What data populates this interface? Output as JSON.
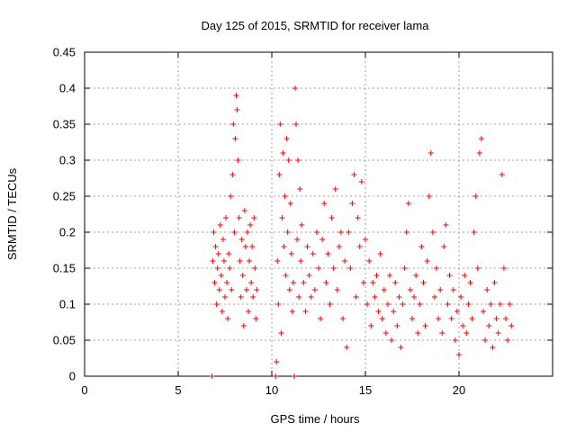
{
  "chart_data": {
    "type": "scatter",
    "title": "Day 125 of 2015, SRMTID for receiver lama",
    "xlabel": "GPS time / hours",
    "ylabel": "SRMTID / TECUs",
    "xlim": [
      0,
      25
    ],
    "ylim": [
      0,
      0.45
    ],
    "xticks": [
      0,
      5,
      10,
      15,
      20
    ],
    "yticks": [
      0,
      0.05,
      0.1,
      0.15,
      0.2,
      0.25,
      0.3,
      0.35,
      0.4,
      0.45
    ],
    "ytick_labels": [
      "0",
      "0.05",
      "0.1",
      "0.15",
      "0.2",
      "0.25",
      "0.3",
      "0.35",
      "0.4",
      "0.45"
    ],
    "grid": true,
    "marker": "+",
    "color": "#ff0000",
    "series": [
      {
        "name": "SRMTID",
        "points": [
          [
            6.8,
            0.0
          ],
          [
            6.85,
            0.16
          ],
          [
            6.9,
            0.2
          ],
          [
            6.95,
            0.13
          ],
          [
            7.0,
            0.18
          ],
          [
            7.05,
            0.1
          ],
          [
            7.1,
            0.15
          ],
          [
            7.15,
            0.17
          ],
          [
            7.2,
            0.12
          ],
          [
            7.25,
            0.21
          ],
          [
            7.3,
            0.14
          ],
          [
            7.35,
            0.09
          ],
          [
            7.4,
            0.19
          ],
          [
            7.45,
            0.16
          ],
          [
            7.5,
            0.11
          ],
          [
            7.55,
            0.22
          ],
          [
            7.6,
            0.13
          ],
          [
            7.65,
            0.08
          ],
          [
            7.7,
            0.17
          ],
          [
            7.75,
            0.15
          ],
          [
            7.8,
            0.25
          ],
          [
            7.85,
            0.12
          ],
          [
            7.9,
            0.28
          ],
          [
            7.95,
            0.35
          ],
          [
            8.0,
            0.2
          ],
          [
            8.05,
            0.33
          ],
          [
            8.1,
            0.39
          ],
          [
            8.15,
            0.37
          ],
          [
            8.2,
            0.3
          ],
          [
            8.25,
            0.22
          ],
          [
            8.3,
            0.16
          ],
          [
            8.35,
            0.11
          ],
          [
            8.4,
            0.19
          ],
          [
            8.45,
            0.14
          ],
          [
            8.5,
            0.07
          ],
          [
            8.55,
            0.23
          ],
          [
            8.6,
            0.18
          ],
          [
            8.65,
            0.12
          ],
          [
            8.7,
            0.2
          ],
          [
            8.75,
            0.09
          ],
          [
            8.8,
            0.16
          ],
          [
            8.85,
            0.21
          ],
          [
            8.9,
            0.13
          ],
          [
            8.95,
            0.18
          ],
          [
            9.0,
            0.11
          ],
          [
            9.05,
            0.22
          ],
          [
            9.1,
            0.15
          ],
          [
            9.15,
            0.08
          ],
          [
            9.2,
            0.12
          ],
          [
            10.2,
            0.0
          ],
          [
            10.25,
            0.02
          ],
          [
            10.3,
            0.16
          ],
          [
            10.35,
            0.1
          ],
          [
            10.4,
            0.28
          ],
          [
            10.45,
            0.35
          ],
          [
            10.5,
            0.06
          ],
          [
            10.55,
            0.22
          ],
          [
            10.6,
            0.31
          ],
          [
            10.65,
            0.18
          ],
          [
            10.7,
            0.25
          ],
          [
            10.75,
            0.14
          ],
          [
            10.8,
            0.33
          ],
          [
            10.85,
            0.2
          ],
          [
            10.9,
            0.3
          ],
          [
            10.95,
            0.12
          ],
          [
            11.0,
            0.24
          ],
          [
            11.05,
            0.17
          ],
          [
            11.1,
            0.09
          ],
          [
            11.15,
            0.13
          ],
          [
            11.2,
            0.0
          ],
          [
            11.25,
            0.4
          ],
          [
            11.3,
            0.35
          ],
          [
            11.35,
            0.19
          ],
          [
            11.4,
            0.3
          ],
          [
            11.45,
            0.11
          ],
          [
            11.5,
            0.26
          ],
          [
            11.55,
            0.16
          ],
          [
            11.6,
            0.21
          ],
          [
            11.7,
            0.13
          ],
          [
            11.8,
            0.09
          ],
          [
            11.9,
            0.18
          ],
          [
            12.0,
            0.14
          ],
          [
            12.1,
            0.11
          ],
          [
            12.2,
            0.17
          ],
          [
            12.3,
            0.12
          ],
          [
            12.4,
            0.2
          ],
          [
            12.5,
            0.15
          ],
          [
            12.6,
            0.08
          ],
          [
            12.7,
            0.19
          ],
          [
            12.8,
            0.24
          ],
          [
            12.9,
            0.13
          ],
          [
            13.0,
            0.17
          ],
          [
            13.1,
            0.1
          ],
          [
            13.2,
            0.22
          ],
          [
            13.3,
            0.15
          ],
          [
            13.4,
            0.26
          ],
          [
            13.5,
            0.12
          ],
          [
            13.6,
            0.18
          ],
          [
            13.7,
            0.2
          ],
          [
            13.8,
            0.08
          ],
          [
            13.9,
            0.16
          ],
          [
            14.0,
            0.04
          ],
          [
            14.1,
            0.2
          ],
          [
            14.2,
            0.15
          ],
          [
            14.3,
            0.24
          ],
          [
            14.4,
            0.28
          ],
          [
            14.5,
            0.11
          ],
          [
            14.6,
            0.22
          ],
          [
            14.7,
            0.18
          ],
          [
            14.8,
            0.27
          ],
          [
            14.9,
            0.13
          ],
          [
            15.0,
            0.19
          ],
          [
            15.1,
            0.1
          ],
          [
            15.2,
            0.16
          ],
          [
            15.3,
            0.07
          ],
          [
            15.4,
            0.13
          ],
          [
            15.5,
            0.11
          ],
          [
            15.6,
            0.14
          ],
          [
            15.7,
            0.09
          ],
          [
            15.8,
            0.17
          ],
          [
            15.9,
            0.08
          ],
          [
            16.0,
            0.12
          ],
          [
            16.1,
            0.06
          ],
          [
            16.2,
            0.1
          ],
          [
            16.3,
            0.14
          ],
          [
            16.4,
            0.05
          ],
          [
            16.5,
            0.09
          ],
          [
            16.6,
            0.13
          ],
          [
            16.7,
            0.07
          ],
          [
            16.8,
            0.11
          ],
          [
            16.9,
            0.04
          ],
          [
            17.0,
            0.1
          ],
          [
            17.1,
            0.15
          ],
          [
            17.2,
            0.2
          ],
          [
            17.3,
            0.24
          ],
          [
            17.4,
            0.12
          ],
          [
            17.5,
            0.08
          ],
          [
            17.6,
            0.11
          ],
          [
            17.7,
            0.14
          ],
          [
            17.8,
            0.06
          ],
          [
            17.9,
            0.1
          ],
          [
            18.0,
            0.18
          ],
          [
            18.1,
            0.13
          ],
          [
            18.2,
            0.07
          ],
          [
            18.3,
            0.16
          ],
          [
            18.4,
            0.25
          ],
          [
            18.5,
            0.31
          ],
          [
            18.6,
            0.2
          ],
          [
            18.7,
            0.11
          ],
          [
            18.8,
            0.15
          ],
          [
            18.9,
            0.08
          ],
          [
            19.0,
            0.12
          ],
          [
            19.1,
            0.06
          ],
          [
            19.2,
            0.18
          ],
          [
            19.3,
            0.21
          ],
          [
            19.4,
            0.1
          ],
          [
            19.5,
            0.14
          ],
          [
            19.6,
            0.08
          ],
          [
            19.7,
            0.12
          ],
          [
            19.8,
            0.05
          ],
          [
            19.9,
            0.09
          ],
          [
            20.0,
            0.03
          ],
          [
            20.1,
            0.11
          ],
          [
            20.2,
            0.07
          ],
          [
            20.3,
            0.14
          ],
          [
            20.4,
            0.06
          ],
          [
            20.5,
            0.1
          ],
          [
            20.6,
            0.13
          ],
          [
            20.7,
            0.08
          ],
          [
            20.8,
            0.2
          ],
          [
            20.9,
            0.25
          ],
          [
            21.0,
            0.15
          ],
          [
            21.1,
            0.31
          ],
          [
            21.2,
            0.33
          ],
          [
            21.3,
            0.09
          ],
          [
            21.4,
            0.05
          ],
          [
            21.5,
            0.12
          ],
          [
            21.6,
            0.07
          ],
          [
            21.7,
            0.1
          ],
          [
            21.8,
            0.04
          ],
          [
            21.9,
            0.13
          ],
          [
            22.0,
            0.08
          ],
          [
            22.1,
            0.06
          ],
          [
            22.2,
            0.1
          ],
          [
            22.3,
            0.28
          ],
          [
            22.4,
            0.15
          ],
          [
            22.5,
            0.08
          ],
          [
            22.6,
            0.05
          ],
          [
            22.7,
            0.1
          ],
          [
            22.8,
            0.07
          ]
        ]
      }
    ]
  }
}
